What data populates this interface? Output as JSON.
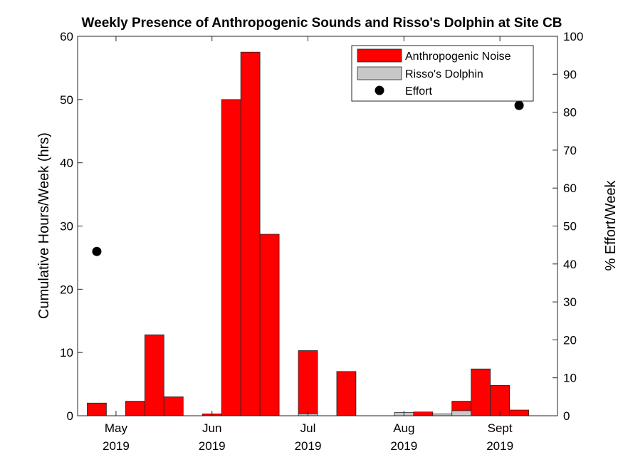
{
  "chart_data": {
    "type": "bar",
    "title": "Weekly Presence of Anthropogenic Sounds and Risso's Dolphin at Site CB",
    "ylabel": "Cumulative Hours/Week (hrs)",
    "y2label": "% Effort/Week",
    "ylim": [
      0,
      60
    ],
    "y2lim": [
      0,
      100
    ],
    "yticks": [
      "0",
      "10",
      "20",
      "30",
      "40",
      "50",
      "60"
    ],
    "y2ticks": [
      "0",
      "10",
      "20",
      "30",
      "40",
      "50",
      "60",
      "70",
      "80",
      "90",
      "100"
    ],
    "xlim": [
      0,
      25
    ],
    "xticks": [
      {
        "x": 2,
        "label": "May",
        "year": "2019"
      },
      {
        "x": 7,
        "label": "Jun",
        "year": "2019"
      },
      {
        "x": 12,
        "label": "Jul",
        "year": "2019"
      },
      {
        "x": 17,
        "label": "Aug",
        "year": "2019"
      },
      {
        "x": 22,
        "label": "Sept",
        "year": "2019"
      }
    ],
    "series": [
      {
        "name": "Anthropogenic Noise",
        "color": "#ff0000",
        "points": [
          {
            "x": 1,
            "value": 2.0
          },
          {
            "x": 3,
            "value": 2.3
          },
          {
            "x": 4,
            "value": 12.8
          },
          {
            "x": 5,
            "value": 3.0
          },
          {
            "x": 7,
            "value": 0.3
          },
          {
            "x": 8,
            "value": 50.0
          },
          {
            "x": 9,
            "value": 57.5
          },
          {
            "x": 10,
            "value": 28.7
          },
          {
            "x": 12,
            "value": 10.3
          },
          {
            "x": 14,
            "value": 7.0
          },
          {
            "x": 18,
            "value": 0.6
          },
          {
            "x": 20,
            "value": 2.3
          },
          {
            "x": 21,
            "value": 7.4
          },
          {
            "x": 22,
            "value": 4.8
          },
          {
            "x": 23,
            "value": 0.9
          }
        ]
      },
      {
        "name": "Risso's Dolphin",
        "color": "#c8c8c8",
        "points": [
          {
            "x": 12,
            "value": 0.3
          },
          {
            "x": 17,
            "value": 0.5
          },
          {
            "x": 19,
            "value": 0.3
          },
          {
            "x": 20,
            "value": 0.8
          }
        ]
      },
      {
        "name": "Effort",
        "color": "#000000",
        "type": "scatter",
        "axis": "right",
        "points": [
          {
            "x": 1,
            "value": 43.3
          },
          {
            "x": 23,
            "value": 81.8
          }
        ]
      }
    ],
    "legend_position": "top-right",
    "grid": false
  }
}
